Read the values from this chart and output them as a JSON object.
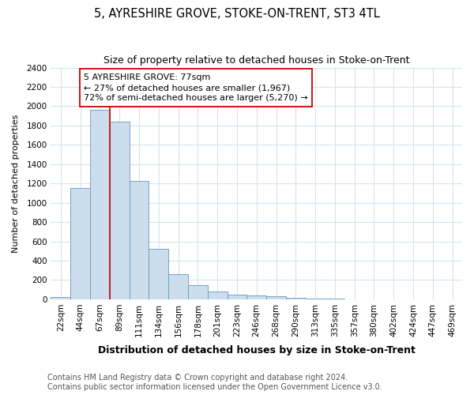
{
  "title": "5, AYRESHIRE GROVE, STOKE-ON-TRENT, ST3 4TL",
  "subtitle": "Size of property relative to detached houses in Stoke-on-Trent",
  "xlabel": "Distribution of detached houses by size in Stoke-on-Trent",
  "ylabel": "Number of detached properties",
  "categories": [
    "22sqm",
    "44sqm",
    "67sqm",
    "89sqm",
    "111sqm",
    "134sqm",
    "156sqm",
    "178sqm",
    "201sqm",
    "223sqm",
    "246sqm",
    "268sqm",
    "290sqm",
    "313sqm",
    "335sqm",
    "357sqm",
    "380sqm",
    "402sqm",
    "424sqm",
    "447sqm",
    "469sqm"
  ],
  "values": [
    25,
    1150,
    1960,
    1840,
    1225,
    520,
    265,
    148,
    78,
    45,
    40,
    35,
    15,
    8,
    5,
    3,
    3,
    3,
    3,
    3,
    3
  ],
  "bar_color": "#ccdded",
  "bar_edge_color": "#6699bb",
  "red_line_x": 2.5,
  "annotation_text": "5 AYRESHIRE GROVE: 77sqm\n← 27% of detached houses are smaller (1,967)\n72% of semi-detached houses are larger (5,270) →",
  "annotation_box_facecolor": "#ffffff",
  "annotation_box_edgecolor": "#cc0000",
  "ylim": [
    0,
    2400
  ],
  "yticks": [
    0,
    200,
    400,
    600,
    800,
    1000,
    1200,
    1400,
    1600,
    1800,
    2000,
    2200,
    2400
  ],
  "grid_color": "#d8e4ee",
  "plot_bg_color": "#ffffff",
  "fig_bg_color": "#ffffff",
  "title_fontsize": 10.5,
  "subtitle_fontsize": 9,
  "xlabel_fontsize": 9,
  "ylabel_fontsize": 8,
  "tick_fontsize": 7.5,
  "annotation_fontsize": 8,
  "footer_fontsize": 7,
  "footer_line1": "Contains HM Land Registry data © Crown copyright and database right 2024.",
  "footer_line2": "Contains public sector information licensed under the Open Government Licence v3.0."
}
